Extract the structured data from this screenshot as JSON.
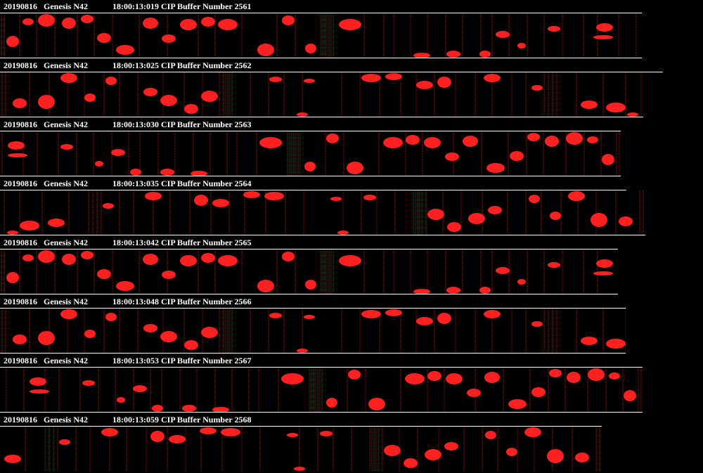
{
  "buffers": [
    {
      "date": "20190816",
      "probe": "Genesis N42",
      "info": "18:00:13:019 CIP Buffer Number 2561"
    },
    {
      "date": "20190816",
      "probe": "Genesis N42",
      "info": "18:00:13:025 CIP Buffer Number 2562"
    },
    {
      "date": "20190816",
      "probe": "Genesis N42",
      "info": "18:00:13:030 CIP Buffer Number 2563"
    },
    {
      "date": "20190816",
      "probe": "Genesis N42",
      "info": "18:00:13:035 CIP Buffer Number 2564"
    },
    {
      "date": "20190816",
      "probe": "Genesis N42",
      "info": "18:00:13:042 CIP Buffer Number 2565"
    },
    {
      "date": "20190816",
      "probe": "Genesis N42",
      "info": "18:00:13:048 CIP Buffer Number 2566"
    },
    {
      "date": "20190816",
      "probe": "Genesis N42",
      "info": "18:00:13:053 CIP Buffer Number 2567"
    },
    {
      "date": "20190816",
      "probe": "Genesis N42",
      "info": "18:00:13:059 CIP Buffer Number 2568"
    }
  ]
}
